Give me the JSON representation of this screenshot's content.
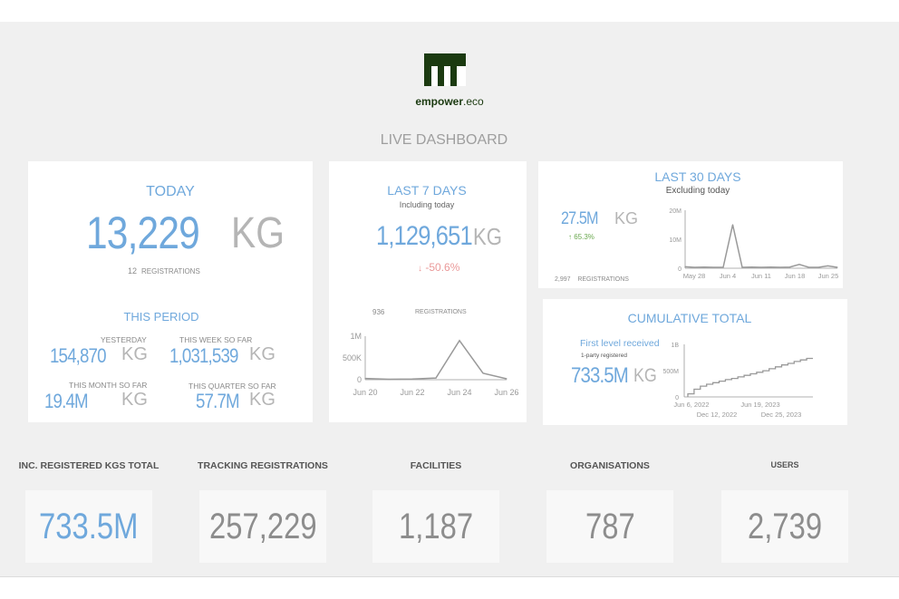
{
  "brand": {
    "name_bold": "empower",
    "name_light": ".eco"
  },
  "page_title": "LIVE DASHBOARD",
  "today": {
    "title": "TODAY",
    "value": "13,229",
    "unit": "KG",
    "registrations_count": "12",
    "registrations_label": "REGISTRATIONS"
  },
  "period": {
    "title": "THIS PERIOD",
    "yesterday": {
      "label": "YESTERDAY",
      "value": "154,870",
      "unit": "KG"
    },
    "week": {
      "label": "THIS WEEK SO FAR",
      "value": "1,031,539",
      "unit": "KG"
    },
    "month": {
      "label": "THIS MONTH SO FAR",
      "value": "19.4M",
      "unit": "KG"
    },
    "quarter": {
      "label": "THIS QUARTER SO FAR",
      "value": "57.7M",
      "unit": "KG"
    }
  },
  "last7": {
    "title": "LAST 7 DAYS",
    "subtitle": "Including today",
    "value": "1,129,651",
    "unit": "KG",
    "change": "-50.6%",
    "change_arrow": "↓",
    "registrations_count": "936",
    "registrations_label": "REGISTRATIONS"
  },
  "last30": {
    "title": "LAST 30 DAYS",
    "subtitle": "Excluding today",
    "value": "27.5M",
    "unit": "KG",
    "change": "65.3%",
    "change_arrow": "↑",
    "registrations_count": "2,997",
    "registrations_label": "REGISTRATIONS"
  },
  "cumulative": {
    "title": "CUMULATIVE TOTAL",
    "first_level": "First level received",
    "sub": "1-party registered",
    "value": "733.5M",
    "unit": "KG"
  },
  "kpis": [
    {
      "label": "INC. REGISTERED KGS TOTAL",
      "value": "733.5M",
      "accent": "#6fa8dc"
    },
    {
      "label": "TRACKING REGISTRATIONS",
      "value": "257,229",
      "accent": "#8d8d8d"
    },
    {
      "label": "FACILITIES",
      "value": "1,187",
      "accent": "#8d8d8d"
    },
    {
      "label": "ORGANISATIONS",
      "value": "787",
      "accent": "#8d8d8d"
    },
    {
      "label": "USERS",
      "value": "2,739",
      "accent": "#8d8d8d"
    }
  ],
  "colors": {
    "accent": "#6fa8dc",
    "negative": "#ea9999",
    "positive": "#6aa84f",
    "logo": "#1b3a10"
  },
  "chart_data": [
    {
      "type": "line",
      "x": [
        "Jun 20",
        "Jun 21",
        "Jun 22",
        "Jun 23",
        "Jun 24",
        "Jun 25",
        "Jun 26"
      ],
      "y": [
        30000,
        10000,
        15000,
        40000,
        900000,
        150000,
        20000
      ],
      "xticks": [
        "Jun 20",
        "Jun 22",
        "Jun 24",
        "Jun 26"
      ],
      "yticks": [
        "0",
        "500K",
        "1M"
      ],
      "ylim": [
        0,
        1000000
      ]
    },
    {
      "type": "line",
      "x": [
        "May 28",
        "May 30",
        "Jun 1",
        "Jun 3",
        "Jun 5",
        "Jun 6",
        "Jun 7",
        "Jun 9",
        "Jun 11",
        "Jun 13",
        "Jun 15",
        "Jun 17",
        "Jun 18",
        "Jun 19",
        "Jun 21",
        "Jun 23",
        "Jun 25"
      ],
      "y": [
        500000,
        300000,
        400000,
        300000,
        300000,
        15000000,
        300000,
        400000,
        300000,
        400000,
        300000,
        400000,
        1300000,
        300000,
        300000,
        800000,
        300000
      ],
      "xticks": [
        "May 28",
        "Jun 4",
        "Jun 11",
        "Jun 18",
        "Jun 25"
      ],
      "yticks": [
        "0",
        "10M",
        "20M"
      ],
      "ylim": [
        0,
        20000000
      ]
    },
    {
      "type": "line",
      "x": [
        "Jun 6, 2022",
        "Dec 12, 2022",
        "Jun 19, 2023",
        "Dec 25, 2023"
      ],
      "y": [
        0,
        260000000,
        470000000,
        733500000
      ],
      "points": [
        0,
        0.08,
        0.2,
        0.28,
        0.33,
        0.37,
        0.41,
        0.45,
        0.48,
        0.52,
        0.56,
        0.6,
        0.64,
        0.68,
        0.73,
        0.78,
        0.83,
        0.87,
        0.92,
        0.96,
        1.0
      ],
      "xticks_top": [
        "Jun 6, 2022",
        "Jun 19, 2023"
      ],
      "xticks_bottom": [
        "Dec 12, 2022",
        "Dec 25, 2023"
      ],
      "yticks": [
        "0",
        "500M",
        "1B"
      ],
      "ylim": [
        0,
        1000000000
      ]
    }
  ]
}
